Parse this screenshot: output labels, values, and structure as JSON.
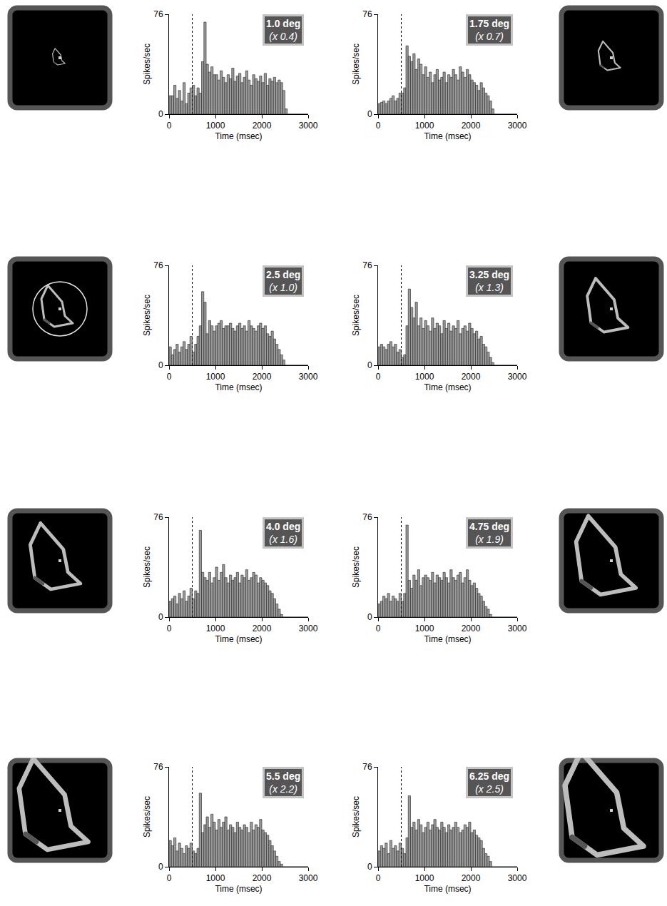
{
  "chart_data": [
    {
      "type": "histogram",
      "title": "1.0 deg",
      "subtitle": "(x 0.4)",
      "scale": 0.4,
      "onset": 500,
      "x_label": "Time (msec)",
      "y_label": "Spikes/sec",
      "bins": [
        0,
        50,
        100,
        150,
        200,
        250,
        300,
        350,
        400,
        450,
        500,
        550,
        600,
        650,
        700,
        750,
        800,
        850,
        900,
        950,
        1000,
        1050,
        1100,
        1150,
        1200,
        1250,
        1300,
        1350,
        1400,
        1450,
        1500,
        1550,
        1600,
        1650,
        1700,
        1750,
        1800,
        1850,
        1900,
        1950,
        2000,
        2050,
        2100,
        2150,
        2200,
        2250,
        2300,
        2350,
        2400,
        2450,
        2500,
        2550,
        2600,
        2650,
        2700,
        2750,
        2800,
        2850,
        2900,
        2950,
        3000
      ],
      "values": [
        14,
        14,
        22,
        12,
        18,
        10,
        24,
        8,
        16,
        20,
        22,
        14,
        20,
        16,
        40,
        70,
        38,
        32,
        36,
        30,
        30,
        26,
        33,
        28,
        24,
        30,
        27,
        35,
        25,
        29,
        31,
        24,
        28,
        33,
        26,
        22,
        30,
        27,
        25,
        29,
        24,
        31,
        22,
        27,
        25,
        28,
        24,
        26,
        24,
        18,
        4,
        0,
        0,
        0,
        0,
        0,
        0,
        0,
        0,
        0
      ],
      "xlim": [
        0,
        3000
      ],
      "xticks": [
        0,
        1000,
        2000,
        3000
      ],
      "ylim": [
        0,
        76
      ],
      "yticks": [
        0,
        76
      ]
    },
    {
      "type": "histogram",
      "title": "1.75 deg",
      "subtitle": "(x 0.7)",
      "scale": 0.7,
      "onset": 500,
      "x_label": "Time (msec)",
      "y_label": "Spikes/sec",
      "bins": [
        0,
        50,
        100,
        150,
        200,
        250,
        300,
        350,
        400,
        450,
        500,
        550,
        600,
        650,
        700,
        750,
        800,
        850,
        900,
        950,
        1000,
        1050,
        1100,
        1150,
        1200,
        1250,
        1300,
        1350,
        1400,
        1450,
        1500,
        1550,
        1600,
        1650,
        1700,
        1750,
        1800,
        1850,
        1900,
        1950,
        2000,
        2050,
        2100,
        2150,
        2200,
        2250,
        2300,
        2350,
        2400,
        2450,
        2500,
        2550,
        2600,
        2650,
        2700,
        2750,
        2800,
        2850,
        2900,
        2950,
        3000
      ],
      "values": [
        8,
        9,
        10,
        8,
        10,
        12,
        14,
        10,
        12,
        16,
        16,
        20,
        52,
        44,
        40,
        46,
        34,
        42,
        38,
        30,
        36,
        28,
        32,
        24,
        30,
        34,
        26,
        28,
        32,
        24,
        30,
        28,
        34,
        30,
        26,
        36,
        32,
        28,
        34,
        30,
        26,
        24,
        22,
        18,
        24,
        20,
        16,
        14,
        10,
        4,
        0,
        0,
        0,
        0,
        0,
        0,
        0,
        0,
        0,
        0
      ],
      "xlim": [
        0,
        3000
      ],
      "xticks": [
        0,
        1000,
        2000,
        3000
      ],
      "ylim": [
        0,
        76
      ],
      "yticks": [
        0,
        76
      ]
    },
    {
      "type": "histogram",
      "title": "2.5 deg",
      "subtitle": "(x 1.0)",
      "scale": 1.0,
      "onset": 500,
      "x_label": "Time (msec)",
      "y_label": "Spikes/sec",
      "bins": [
        0,
        50,
        100,
        150,
        200,
        250,
        300,
        350,
        400,
        450,
        500,
        550,
        600,
        650,
        700,
        750,
        800,
        850,
        900,
        950,
        1000,
        1050,
        1100,
        1150,
        1200,
        1250,
        1300,
        1350,
        1400,
        1450,
        1500,
        1550,
        1600,
        1650,
        1700,
        1750,
        1800,
        1850,
        1900,
        1950,
        2000,
        2050,
        2100,
        2150,
        2200,
        2250,
        2300,
        2350,
        2400,
        2450,
        2500,
        2550,
        2600,
        2650,
        2700,
        2750,
        2800,
        2850,
        2900,
        2950,
        3000
      ],
      "values": [
        14,
        8,
        12,
        16,
        10,
        14,
        18,
        12,
        16,
        22,
        10,
        16,
        22,
        30,
        56,
        48,
        24,
        34,
        30,
        26,
        30,
        32,
        34,
        28,
        30,
        30,
        32,
        28,
        26,
        30,
        32,
        28,
        30,
        26,
        34,
        30,
        28,
        26,
        30,
        32,
        28,
        30,
        24,
        22,
        26,
        20,
        16,
        12,
        8,
        4,
        0,
        0,
        0,
        0,
        0,
        0,
        0,
        0,
        0,
        0
      ],
      "xlim": [
        0,
        3000
      ],
      "xticks": [
        0,
        1000,
        2000,
        3000
      ],
      "ylim": [
        0,
        76
      ],
      "yticks": [
        0,
        76
      ]
    },
    {
      "type": "histogram",
      "title": "3.25 deg",
      "subtitle": "(x 1.3)",
      "scale": 1.3,
      "onset": 500,
      "x_label": "Time (msec)",
      "y_label": "Spikes/sec",
      "bins": [
        0,
        50,
        100,
        150,
        200,
        250,
        300,
        350,
        400,
        450,
        500,
        550,
        600,
        650,
        700,
        750,
        800,
        850,
        900,
        950,
        1000,
        1050,
        1100,
        1150,
        1200,
        1250,
        1300,
        1350,
        1400,
        1450,
        1500,
        1550,
        1600,
        1650,
        1700,
        1750,
        1800,
        1850,
        1900,
        1950,
        2000,
        2050,
        2100,
        2150,
        2200,
        2250,
        2300,
        2350,
        2400,
        2450,
        2500,
        2550,
        2600,
        2650,
        2700,
        2750,
        2800,
        2850,
        2900,
        2950,
        3000
      ],
      "values": [
        14,
        16,
        14,
        12,
        16,
        18,
        14,
        16,
        10,
        12,
        6,
        8,
        30,
        58,
        44,
        36,
        48,
        30,
        36,
        28,
        34,
        30,
        26,
        36,
        28,
        32,
        30,
        24,
        34,
        28,
        32,
        26,
        30,
        28,
        34,
        24,
        28,
        30,
        26,
        32,
        28,
        24,
        26,
        20,
        22,
        16,
        14,
        10,
        6,
        2,
        0,
        0,
        0,
        0,
        0,
        0,
        0,
        0,
        0,
        0
      ],
      "xlim": [
        0,
        3000
      ],
      "xticks": [
        0,
        1000,
        2000,
        3000
      ],
      "ylim": [
        0,
        76
      ],
      "yticks": [
        0,
        76
      ]
    },
    {
      "type": "histogram",
      "title": "4.0 deg",
      "subtitle": "(x 1.6)",
      "scale": 1.6,
      "onset": 500,
      "x_label": "Time (msec)",
      "y_label": "Spikes/sec",
      "bins": [
        0,
        50,
        100,
        150,
        200,
        250,
        300,
        350,
        400,
        450,
        500,
        550,
        600,
        650,
        700,
        750,
        800,
        850,
        900,
        950,
        1000,
        1050,
        1100,
        1150,
        1200,
        1250,
        1300,
        1350,
        1400,
        1450,
        1500,
        1550,
        1600,
        1650,
        1700,
        1750,
        1800,
        1850,
        1900,
        1950,
        2000,
        2050,
        2100,
        2150,
        2200,
        2250,
        2300,
        2350,
        2400,
        2450,
        2500,
        2550,
        2600,
        2650,
        2700,
        2750,
        2800,
        2850,
        2900,
        2950,
        3000
      ],
      "values": [
        12,
        14,
        16,
        10,
        18,
        14,
        20,
        12,
        16,
        22,
        14,
        20,
        18,
        66,
        34,
        30,
        28,
        34,
        26,
        30,
        38,
        28,
        34,
        40,
        30,
        26,
        32,
        28,
        30,
        34,
        26,
        32,
        30,
        36,
        28,
        30,
        34,
        32,
        26,
        30,
        28,
        26,
        24,
        20,
        18,
        14,
        10,
        6,
        2,
        0,
        0,
        0,
        0,
        0,
        0,
        0,
        0,
        0,
        0,
        0
      ],
      "xlim": [
        0,
        3000
      ],
      "xticks": [
        0,
        1000,
        2000,
        3000
      ],
      "ylim": [
        0,
        76
      ],
      "yticks": [
        0,
        76
      ]
    },
    {
      "type": "histogram",
      "title": "4.75 deg",
      "subtitle": "(x 1.9)",
      "scale": 1.9,
      "onset": 500,
      "x_label": "Time (msec)",
      "y_label": "Spikes/sec",
      "bins": [
        0,
        50,
        100,
        150,
        200,
        250,
        300,
        350,
        400,
        450,
        500,
        550,
        600,
        650,
        700,
        750,
        800,
        850,
        900,
        950,
        1000,
        1050,
        1100,
        1150,
        1200,
        1250,
        1300,
        1350,
        1400,
        1450,
        1500,
        1550,
        1600,
        1650,
        1700,
        1750,
        1800,
        1850,
        1900,
        1950,
        2000,
        2050,
        2100,
        2150,
        2200,
        2250,
        2300,
        2350,
        2400,
        2450,
        2500,
        2550,
        2600,
        2650,
        2700,
        2750,
        2800,
        2850,
        2900,
        2950,
        3000
      ],
      "values": [
        10,
        12,
        16,
        14,
        18,
        12,
        16,
        14,
        12,
        18,
        12,
        18,
        70,
        28,
        22,
        32,
        28,
        36,
        24,
        30,
        32,
        30,
        28,
        34,
        26,
        32,
        30,
        28,
        34,
        30,
        26,
        36,
        30,
        28,
        32,
        34,
        26,
        30,
        36,
        28,
        24,
        26,
        22,
        18,
        16,
        12,
        8,
        6,
        2,
        0,
        0,
        0,
        0,
        0,
        0,
        0,
        0,
        0,
        0,
        0
      ],
      "xlim": [
        0,
        3000
      ],
      "xticks": [
        0,
        1000,
        2000,
        3000
      ],
      "ylim": [
        0,
        76
      ],
      "yticks": [
        0,
        76
      ]
    },
    {
      "type": "histogram",
      "title": "5.5 deg",
      "subtitle": "(x 2.2)",
      "scale": 2.2,
      "onset": 500,
      "x_label": "Time (msec)",
      "y_label": "Spikes/sec",
      "bins": [
        0,
        50,
        100,
        150,
        200,
        250,
        300,
        350,
        400,
        450,
        500,
        550,
        600,
        650,
        700,
        750,
        800,
        850,
        900,
        950,
        1000,
        1050,
        1100,
        1150,
        1200,
        1250,
        1300,
        1350,
        1400,
        1450,
        1500,
        1550,
        1600,
        1650,
        1700,
        1750,
        1800,
        1850,
        1900,
        1950,
        2000,
        2050,
        2100,
        2150,
        2200,
        2250,
        2300,
        2350,
        2400,
        2450,
        2500,
        2550,
        2600,
        2650,
        2700,
        2750,
        2800,
        2850,
        2900,
        2950,
        3000
      ],
      "values": [
        20,
        16,
        22,
        12,
        18,
        14,
        10,
        16,
        14,
        18,
        12,
        10,
        14,
        56,
        26,
        32,
        38,
        30,
        40,
        34,
        28,
        36,
        30,
        34,
        38,
        28,
        32,
        30,
        26,
        34,
        30,
        28,
        32,
        30,
        26,
        34,
        28,
        32,
        30,
        36,
        28,
        26,
        24,
        20,
        16,
        12,
        8,
        4,
        2,
        0,
        0,
        0,
        0,
        0,
        0,
        0,
        0,
        0,
        0,
        0
      ],
      "xlim": [
        0,
        3000
      ],
      "xticks": [
        0,
        1000,
        2000,
        3000
      ],
      "ylim": [
        0,
        76
      ],
      "yticks": [
        0,
        76
      ]
    },
    {
      "type": "histogram",
      "title": "6.25 deg",
      "subtitle": "(x 2.5)",
      "scale": 2.5,
      "onset": 500,
      "x_label": "Time (msec)",
      "y_label": "Spikes/sec",
      "bins": [
        0,
        50,
        100,
        150,
        200,
        250,
        300,
        350,
        400,
        450,
        500,
        550,
        600,
        650,
        700,
        750,
        800,
        850,
        900,
        950,
        1000,
        1050,
        1100,
        1150,
        1200,
        1250,
        1300,
        1350,
        1400,
        1450,
        1500,
        1550,
        1600,
        1650,
        1700,
        1750,
        1800,
        1850,
        1900,
        1950,
        2000,
        2050,
        2100,
        2150,
        2200,
        2250,
        2300,
        2350,
        2400,
        2450,
        2500,
        2550,
        2600,
        2650,
        2700,
        2750,
        2800,
        2850,
        2900,
        2950,
        3000
      ],
      "values": [
        12,
        16,
        14,
        18,
        10,
        20,
        14,
        16,
        12,
        18,
        14,
        10,
        22,
        54,
        30,
        34,
        28,
        36,
        32,
        26,
        30,
        34,
        28,
        32,
        36,
        30,
        28,
        34,
        30,
        26,
        32,
        28,
        30,
        34,
        30,
        26,
        28,
        32,
        30,
        34,
        26,
        28,
        24,
        22,
        20,
        14,
        10,
        8,
        4,
        0,
        0,
        0,
        0,
        0,
        0,
        0,
        0,
        0,
        0,
        0
      ],
      "xlim": [
        0,
        3000
      ],
      "xticks": [
        0,
        1000,
        2000,
        3000
      ],
      "ylim": [
        0,
        76
      ],
      "yticks": [
        0,
        76
      ]
    }
  ]
}
